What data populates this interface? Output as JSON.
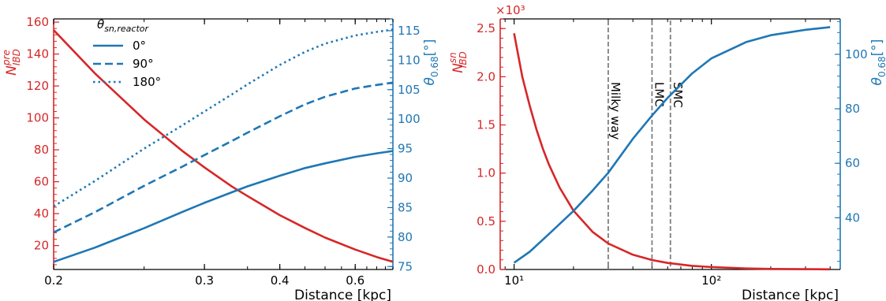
{
  "colors": {
    "red": "#d62728",
    "blue": "#1f77b4",
    "gray": "#808080",
    "axis": "#000000"
  },
  "chart_data": [
    {
      "type": "line",
      "panel": "left",
      "xlabel": "Distance [kpc]",
      "ylabel_left": "N_IBD^pre",
      "ylabel_right": "θ_0.68[°]",
      "xlim": [
        0.2,
        0.8
      ],
      "ylim_left": [
        5,
        162
      ],
      "ylim_right": [
        74.5,
        117
      ],
      "xscale": "reciprocal",
      "xticks": [
        {
          "v": 0.2,
          "label": "0.2"
        },
        {
          "v": 0.3,
          "label": "0.3"
        },
        {
          "v": 0.4,
          "label": "0.4"
        },
        {
          "v": 0.6,
          "label": "0.6"
        }
      ],
      "yticks_left": [
        20,
        40,
        60,
        80,
        100,
        120,
        140,
        160
      ],
      "yticks_right": [
        75,
        80,
        85,
        90,
        95,
        100,
        105,
        110,
        115
      ],
      "legend": {
        "title": "θ_sn,reactor",
        "placement": "upper-left",
        "entries": [
          {
            "label": "0°",
            "style": "solid"
          },
          {
            "label": "90°",
            "style": "dashed"
          },
          {
            "label": "180°",
            "style": "dotted"
          }
        ]
      },
      "series": [
        {
          "axis": "left",
          "color": "red",
          "style": "solid",
          "x": [
            0.2,
            0.22,
            0.25,
            0.28,
            0.3,
            0.33,
            0.35,
            0.4,
            0.45,
            0.5,
            0.6,
            0.7,
            0.8
          ],
          "y": [
            155,
            128,
            99,
            79,
            69,
            57,
            51,
            39,
            31,
            25,
            17.5,
            12.8,
            9.8
          ]
        },
        {
          "name": "0°",
          "axis": "right",
          "color": "blue",
          "style": "solid",
          "x": [
            0.2,
            0.22,
            0.25,
            0.28,
            0.3,
            0.33,
            0.35,
            0.4,
            0.45,
            0.5,
            0.6,
            0.7,
            0.8
          ],
          "y": [
            75.8,
            78.2,
            81.5,
            84.3,
            85.8,
            87.6,
            88.6,
            90.4,
            91.7,
            92.5,
            93.6,
            94.2,
            94.6
          ]
        },
        {
          "name": "90°",
          "axis": "right",
          "color": "blue",
          "style": "dashed",
          "x": [
            0.2,
            0.22,
            0.25,
            0.28,
            0.3,
            0.33,
            0.35,
            0.4,
            0.45,
            0.5,
            0.6,
            0.7,
            0.8
          ],
          "y": [
            80.8,
            84.2,
            88.7,
            92.0,
            93.9,
            96.3,
            97.7,
            100.5,
            102.5,
            103.8,
            105.2,
            105.8,
            106.2
          ]
        },
        {
          "name": "180°",
          "axis": "right",
          "color": "blue",
          "style": "dotted",
          "x": [
            0.2,
            0.22,
            0.25,
            0.28,
            0.3,
            0.33,
            0.35,
            0.4,
            0.45,
            0.5,
            0.6,
            0.7,
            0.8
          ],
          "y": [
            85.2,
            89.5,
            95.0,
            99.0,
            101.3,
            104.2,
            105.9,
            109.2,
            111.4,
            112.8,
            114.2,
            114.8,
            115.2
          ]
        }
      ]
    },
    {
      "type": "line",
      "panel": "right",
      "xlabel": "Distance [kpc]",
      "ylabel_left": "N_IBD^sn",
      "ylabel_right": "θ_0.68[°]",
      "left_axis_multiplier": "×10³",
      "xscale": "log",
      "xlim": [
        8.5,
        450
      ],
      "ylim_left": [
        0,
        2.6
      ],
      "ylim_right": [
        21,
        113
      ],
      "xticks": [
        {
          "v": 10,
          "label": "10¹"
        },
        {
          "v": 100,
          "label": "10²"
        }
      ],
      "yticks_left": [
        0.0,
        0.5,
        1.0,
        1.5,
        2.0,
        2.5
      ],
      "yticks_right": [
        40,
        60,
        80,
        100
      ],
      "annotations": [
        {
          "x": 30,
          "text": "Milky way"
        },
        {
          "x": 50,
          "text": "LMC"
        },
        {
          "x": 62,
          "text": "SMC"
        }
      ],
      "series": [
        {
          "axis": "left",
          "color": "red",
          "style": "solid",
          "x": [
            10,
            11,
            12,
            13,
            14,
            15,
            17,
            20,
            25,
            30,
            40,
            50,
            60,
            80,
            100,
            150,
            200,
            300,
            400
          ],
          "y": [
            2.45,
            2.0,
            1.7,
            1.45,
            1.25,
            1.09,
            0.85,
            0.61,
            0.39,
            0.27,
            0.153,
            0.098,
            0.068,
            0.038,
            0.025,
            0.011,
            0.006,
            0.003,
            0.0015
          ]
        },
        {
          "axis": "right",
          "color": "blue",
          "style": "solid",
          "x": [
            10,
            12,
            15,
            20,
            25,
            30,
            40,
            50,
            60,
            80,
            100,
            150,
            200,
            300,
            400
          ],
          "y": [
            23.5,
            27.5,
            34,
            42.5,
            50,
            56.5,
            69,
            77.5,
            84,
            93,
            98.5,
            104.5,
            107,
            109,
            110
          ]
        }
      ]
    }
  ]
}
